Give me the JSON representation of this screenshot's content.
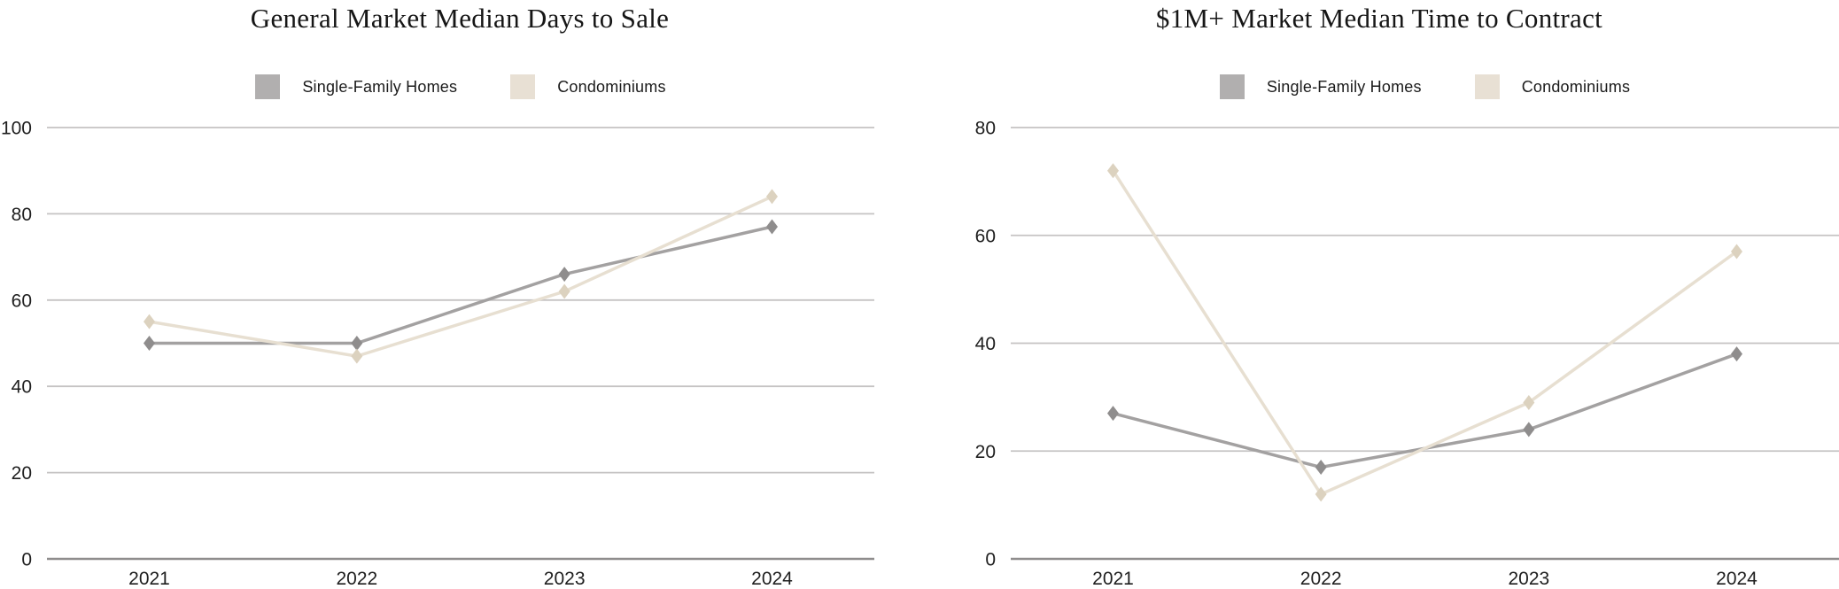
{
  "colors": {
    "background": "#ffffff",
    "title_text": "#161616",
    "tick_text": "#1f1f1f",
    "legend_text": "#1b1b1b",
    "gridline": "#c5c3c3",
    "axis_line": "#8f8d8d"
  },
  "chart_data": [
    {
      "type": "line",
      "title": "General Market Median Days to Sale",
      "categories": [
        "2021",
        "2022",
        "2023",
        "2024"
      ],
      "series": [
        {
          "name": "Single-Family Homes",
          "values": [
            50,
            50,
            66,
            77
          ],
          "line_color": "#a3a1a1",
          "marker_color": "#8f8d8d",
          "swatch_color": "#b1afaf"
        },
        {
          "name": "Condominiums",
          "values": [
            55,
            47,
            62,
            84
          ],
          "line_color": "#e7dfd1",
          "marker_color": "#dcd2bf",
          "swatch_color": "#e8e0d4"
        }
      ],
      "ylim": [
        0,
        100
      ],
      "yticks": [
        0,
        20,
        40,
        60,
        80,
        100
      ],
      "grid": true,
      "legend_position": "top",
      "marker": "diamond"
    },
    {
      "type": "line",
      "title": "$1M+ Market Median Time to Contract",
      "categories": [
        "2021",
        "2022",
        "2023",
        "2024"
      ],
      "series": [
        {
          "name": "Single-Family Homes",
          "values": [
            27,
            17,
            24,
            38
          ],
          "line_color": "#a3a1a1",
          "marker_color": "#8f8d8d",
          "swatch_color": "#b1afaf"
        },
        {
          "name": "Condominiums",
          "values": [
            72,
            12,
            29,
            57
          ],
          "line_color": "#e7dfd1",
          "marker_color": "#dcd2bf",
          "swatch_color": "#e8e0d4"
        }
      ],
      "ylim": [
        0,
        80
      ],
      "yticks": [
        0,
        20,
        40,
        60,
        80
      ],
      "grid": true,
      "legend_position": "top",
      "marker": "diamond"
    }
  ]
}
